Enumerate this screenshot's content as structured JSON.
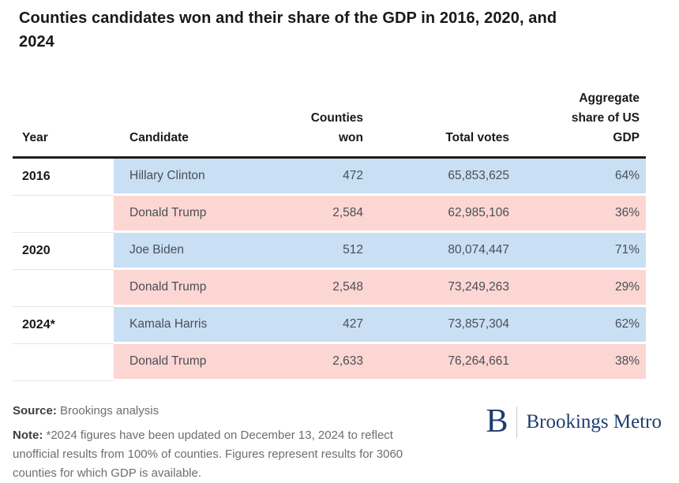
{
  "title": "Counties candidates won and their share of the GDP in 2016, 2020, and\n2024",
  "colors": {
    "dem_row": "#c9dff4",
    "rep_row": "#fcd6d3",
    "header_rule": "#1f1f1f",
    "year_rule": "#e4e4e6",
    "brand_navy": "#1e3d6e"
  },
  "table_header": {
    "year": "Year",
    "candidate": "Candidate",
    "counties_won": "Counties\nwon",
    "total_votes": "Total votes",
    "gdp_share": "Aggregate\nshare of US\nGDP"
  },
  "chart_data": {
    "type": "table",
    "title": "Counties candidates won and their share of the GDP in 2016, 2020, and 2024",
    "columns": [
      "Year",
      "Candidate",
      "Counties won",
      "Total votes",
      "Aggregate share of US GDP"
    ],
    "rows": [
      {
        "year": "2016",
        "candidate": "Hillary Clinton",
        "counties_won": "472",
        "total_votes": "65,853,625",
        "gdp_share": "64%",
        "party": "dem"
      },
      {
        "year": "",
        "candidate": "Donald Trump",
        "counties_won": "2,584",
        "total_votes": "62,985,106",
        "gdp_share": "36%",
        "party": "rep"
      },
      {
        "year": "2020",
        "candidate": "Joe Biden",
        "counties_won": "512",
        "total_votes": "80,074,447",
        "gdp_share": "71%",
        "party": "dem"
      },
      {
        "year": "",
        "candidate": "Donald Trump",
        "counties_won": "2,548",
        "total_votes": "73,249,263",
        "gdp_share": "29%",
        "party": "rep"
      },
      {
        "year": "2024*",
        "candidate": "Kamala Harris",
        "counties_won": "427",
        "total_votes": "73,857,304",
        "gdp_share": "62%",
        "party": "dem"
      },
      {
        "year": "",
        "candidate": "Donald Trump",
        "counties_won": "2,633",
        "total_votes": "76,264,661",
        "gdp_share": "38%",
        "party": "rep"
      }
    ]
  },
  "footer": {
    "source_label": "Source:",
    "source_text": "Brookings analysis",
    "note_label": "Note:",
    "note_text": "*2024 figures have been updated on December 13, 2024 to reflect unofficial results from 100% of counties. Figures represent results for 3060 counties for which GDP is available.",
    "logo": {
      "monogram": "B",
      "wordmark": "Brookings Metro"
    }
  }
}
